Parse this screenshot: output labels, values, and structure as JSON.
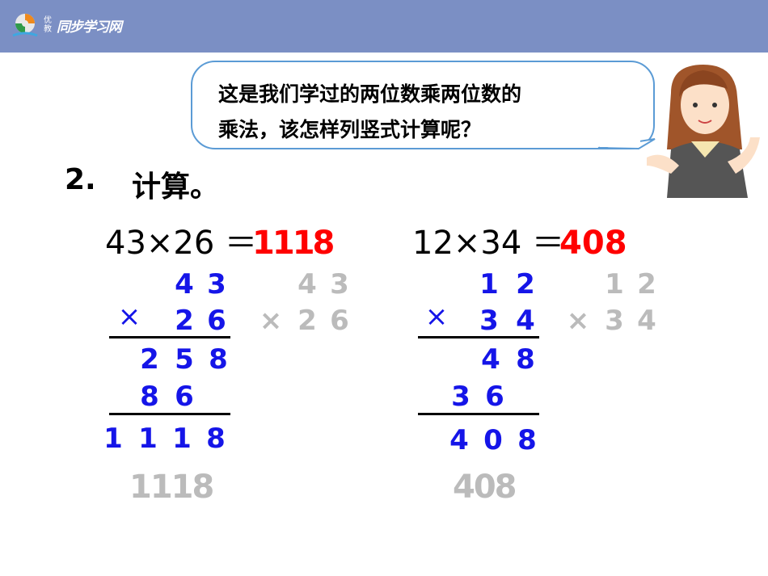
{
  "header": {
    "logo_small": "优教",
    "logo_text": "同步学习网",
    "bg_color": "#7b8fc4"
  },
  "bubble": {
    "line1": "这是我们学过的两位数乘两位数的",
    "line2": "乘法，该怎样列竖式计算呢？"
  },
  "problem": {
    "number": "2.",
    "title": "计算。"
  },
  "eq1": {
    "expr": "43×26 ＝",
    "answer": "1118",
    "vertical": {
      "top": [
        "4",
        "3"
      ],
      "times": "×",
      "second": [
        "2",
        "6"
      ],
      "partial1": [
        "2",
        "5",
        "8"
      ],
      "partial2": [
        "8",
        "6"
      ],
      "result": [
        "1",
        "1",
        "1",
        "8"
      ]
    }
  },
  "eq2": {
    "expr": "12×34 ＝",
    "answer": "408",
    "vertical": {
      "top": [
        "1",
        "2"
      ],
      "times": "×",
      "second": [
        "3",
        "4"
      ],
      "partial1": [
        "4",
        "8"
      ],
      "partial2": [
        "3",
        "6"
      ],
      "result": [
        "4",
        "0",
        "8"
      ]
    }
  },
  "colors": {
    "answer": "#ff0000",
    "digits": "#1515e8",
    "ghost": "#bbbbbb"
  }
}
